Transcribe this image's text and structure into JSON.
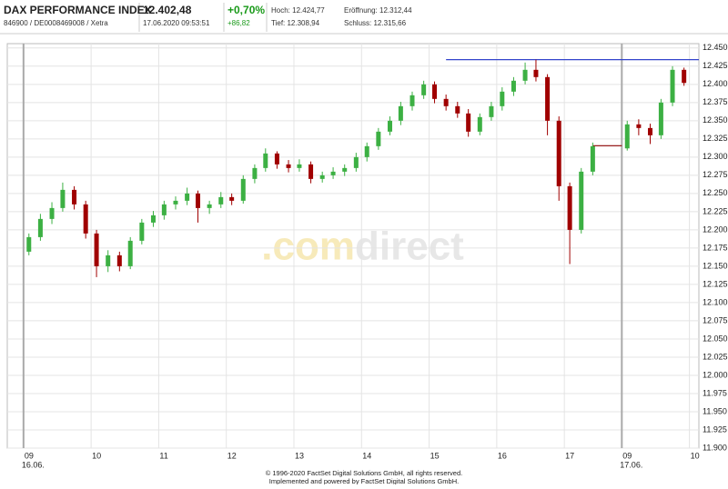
{
  "header": {
    "name": "DAX PERFORMANCE INDEX",
    "id": "846900 / DE0008469008 / Xetra",
    "price": "12.402,48",
    "time": "17.06.2020 09:53:51",
    "change_pct": "+0,70%",
    "change_abs": "+86,82",
    "high": "Hoch: 12.424,77",
    "open": "Eröffnung: 12.312,44",
    "low": "Tief: 12.308,94",
    "close": "Schluss: 12.315,66"
  },
  "watermark": [
    ".com",
    "direct"
  ],
  "footer": [
    "© 1996-2020 FactSet Digital Solutions GmbH, all rights reserved.",
    "Implemented and powered by FactSet Digital Solutions GmbH."
  ],
  "chart_data": {
    "type": "candlestick",
    "up_color": "#3cb043",
    "down_color": "#a00000",
    "grid": true,
    "xlim": [
      -0.24,
      9.99
    ],
    "ylim": [
      11900,
      12456
    ],
    "xticks": [
      {
        "value": 0,
        "label": "09",
        "date": "16.06."
      },
      {
        "value": 1,
        "label": "10"
      },
      {
        "value": 2,
        "label": "11"
      },
      {
        "value": 3,
        "label": "12"
      },
      {
        "value": 4,
        "label": "13"
      },
      {
        "value": 5,
        "label": "14"
      },
      {
        "value": 6,
        "label": "15"
      },
      {
        "value": 7,
        "label": "16"
      },
      {
        "value": 8,
        "label": "17"
      },
      {
        "value": 8.85,
        "label": "09",
        "date": "17.06."
      },
      {
        "value": 9.85,
        "label": "10"
      }
    ],
    "yticks": [
      {
        "value": 11900,
        "label": "11.900"
      },
      {
        "value": 11925,
        "label": "11.925"
      },
      {
        "value": 11950,
        "label": "11.950"
      },
      {
        "value": 11975,
        "label": "11.975"
      },
      {
        "value": 12000,
        "label": "12.000"
      },
      {
        "value": 12025,
        "label": "12.025"
      },
      {
        "value": 12050,
        "label": "12.050"
      },
      {
        "value": 12075,
        "label": "12.075"
      },
      {
        "value": 12100,
        "label": "12.100"
      },
      {
        "value": 12125,
        "label": "12.125"
      },
      {
        "value": 12150,
        "label": "12.150"
      },
      {
        "value": 12175,
        "label": "12.175"
      },
      {
        "value": 12200,
        "label": "12.200"
      },
      {
        "value": 12225,
        "label": "12.225"
      },
      {
        "value": 12250,
        "label": "12.250"
      },
      {
        "value": 12275,
        "label": "12.275"
      },
      {
        "value": 12300,
        "label": "12.300"
      },
      {
        "value": 12325,
        "label": "12.325"
      },
      {
        "value": 12350,
        "label": "12.350"
      },
      {
        "value": 12375,
        "label": "12.375"
      },
      {
        "value": 12400,
        "label": "12.400"
      },
      {
        "value": 12425,
        "label": "12.425"
      },
      {
        "value": 12450,
        "label": "12.450"
      }
    ],
    "x": [
      0.08,
      0.25,
      0.42,
      0.58,
      0.75,
      0.92,
      1.08,
      1.25,
      1.42,
      1.58,
      1.75,
      1.92,
      2.08,
      2.25,
      2.42,
      2.58,
      2.75,
      2.92,
      3.08,
      3.25,
      3.42,
      3.58,
      3.75,
      3.92,
      4.08,
      4.25,
      4.42,
      4.58,
      4.75,
      4.92,
      5.08,
      5.25,
      5.42,
      5.58,
      5.75,
      5.92,
      6.08,
      6.25,
      6.42,
      6.58,
      6.75,
      6.92,
      7.08,
      7.25,
      7.42,
      7.58,
      7.75,
      7.92,
      8.08,
      8.25,
      8.42,
      8.93,
      9.1,
      9.27,
      9.43,
      9.6,
      9.77
    ],
    "open": [
      12170,
      12190,
      12215,
      12230,
      12255,
      12235,
      12195,
      12150,
      12165,
      12150,
      12185,
      12210,
      12220,
      12235,
      12240,
      12250,
      12230,
      12235,
      12245,
      12240,
      12270,
      12285,
      12305,
      12290,
      12285,
      12290,
      12270,
      12275,
      12280,
      12285,
      12300,
      12315,
      12335,
      12350,
      12370,
      12385,
      12400,
      12380,
      12370,
      12360,
      12335,
      12355,
      12370,
      12390,
      12405,
      12420,
      12410,
      12350,
      12260,
      12200,
      12280,
      12312,
      12345,
      12340,
      12330,
      12375,
      12420
    ],
    "high": [
      12195,
      12222,
      12238,
      12265,
      12260,
      12240,
      12200,
      12172,
      12170,
      12190,
      12215,
      12226,
      12240,
      12246,
      12258,
      12254,
      12240,
      12252,
      12250,
      12275,
      12290,
      12312,
      12308,
      12296,
      12297,
      12294,
      12280,
      12286,
      12290,
      12306,
      12320,
      12340,
      12356,
      12376,
      12390,
      12405,
      12404,
      12386,
      12376,
      12366,
      12360,
      12376,
      12396,
      12410,
      12430,
      12434,
      12414,
      12356,
      12265,
      12285,
      12320,
      12350,
      12352,
      12346,
      12380,
      12425,
      12423
    ],
    "low": [
      12165,
      12185,
      12208,
      12225,
      12228,
      12188,
      12135,
      12142,
      12143,
      12146,
      12180,
      12204,
      12214,
      12228,
      12234,
      12210,
      12222,
      12230,
      12234,
      12236,
      12264,
      12280,
      12284,
      12279,
      12280,
      12264,
      12265,
      12270,
      12274,
      12280,
      12294,
      12310,
      12330,
      12344,
      12364,
      12380,
      12374,
      12364,
      12354,
      12328,
      12330,
      12350,
      12364,
      12384,
      12400,
      12404,
      12330,
      12240,
      12153,
      12195,
      12275,
      12309,
      12330,
      12318,
      12325,
      12370,
      12398
    ],
    "close": [
      12190,
      12215,
      12230,
      12255,
      12235,
      12195,
      12150,
      12165,
      12150,
      12185,
      12210,
      12220,
      12235,
      12240,
      12250,
      12230,
      12235,
      12245,
      12240,
      12270,
      12285,
      12305,
      12290,
      12285,
      12290,
      12270,
      12275,
      12280,
      12285,
      12300,
      12315,
      12335,
      12350,
      12370,
      12385,
      12400,
      12380,
      12370,
      12360,
      12335,
      12355,
      12370,
      12390,
      12405,
      12420,
      12410,
      12350,
      12260,
      12200,
      12280,
      12315,
      12345,
      12340,
      12330,
      12375,
      12420,
      12402
    ],
    "lines": [
      {
        "value": 12434,
        "from_x": 6.25,
        "to_x": 9.99,
        "color": "#3344cc"
      },
      {
        "value": 12315.66,
        "from_x": 8.42,
        "to_x": 8.85,
        "color": "#8b0000"
      }
    ]
  }
}
